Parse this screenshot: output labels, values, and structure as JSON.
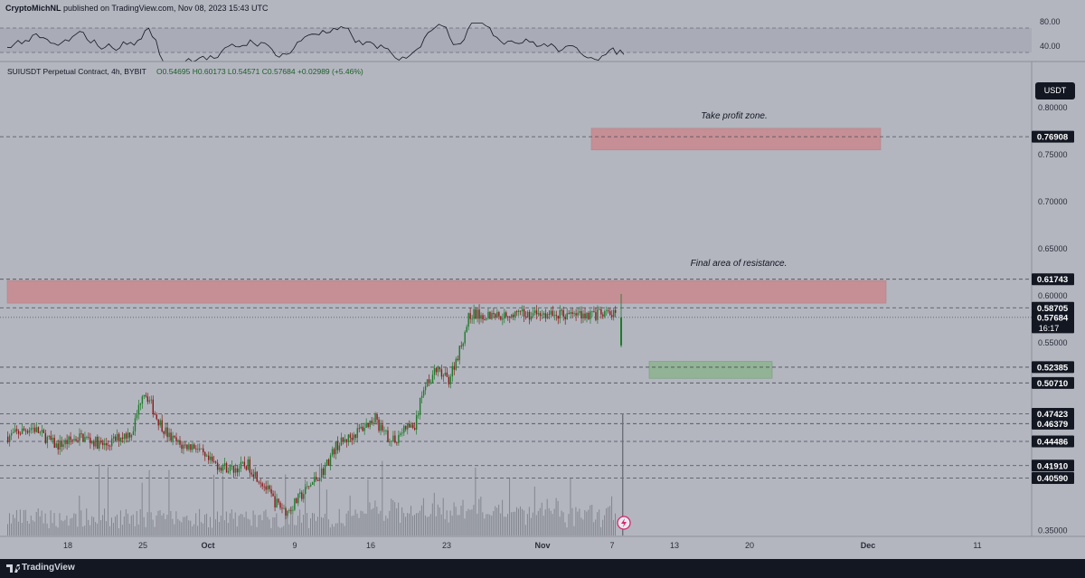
{
  "header": {
    "author": "CryptoMichNL",
    "published_text": "published on TradingView.com, Nov 08, 2023 15:43 UTC"
  },
  "symbol_info": {
    "name": "SUIUSDT Perpetual Contract, 4h, BYBIT",
    "ohlc": "O0.54695  H0.60173  L0.54571  C0.57684  +0.02989 (+5.46%)"
  },
  "currency_button": "USDT",
  "footer": {
    "brand": "TradingView"
  },
  "colors": {
    "background": "#b3b6bf",
    "up": "#1f7a2b",
    "down": "#8b1a1a",
    "zone_red": "#c9898e",
    "zone_green": "#8db38f",
    "label_bg": "#131722"
  },
  "chart_data": {
    "type": "candlestick",
    "timeframe": "4h",
    "y_range": [
      0.35,
      0.82
    ],
    "price_ticks": [
      "0.80000",
      "0.75000",
      "0.70000",
      "0.65000",
      "0.60000",
      "0.55000",
      "0.35000"
    ],
    "x_ticks": [
      "18",
      "25",
      "Oct",
      "9",
      "16",
      "23",
      "Nov",
      "7",
      "13",
      "20",
      "Dec",
      "11"
    ],
    "price_labels": [
      {
        "value": "0.76908"
      },
      {
        "value": "0.61743"
      },
      {
        "value": "0.58705"
      },
      {
        "value": "0.57684",
        "extra": "16:17"
      },
      {
        "value": "0.52385"
      },
      {
        "value": "0.50710"
      },
      {
        "value": "0.47423"
      },
      {
        "value": "0.46379"
      },
      {
        "value": "0.44486"
      },
      {
        "value": "0.41910"
      },
      {
        "value": "0.40590"
      }
    ],
    "annotations": [
      {
        "text": "Take profit zone."
      },
      {
        "text": "Final area of resistance."
      }
    ],
    "zones": [
      {
        "kind": "take-profit",
        "from": 0.755,
        "to": 0.778
      },
      {
        "kind": "resistance",
        "from": 0.592,
        "to": 0.616
      },
      {
        "kind": "support",
        "from": 0.512,
        "to": 0.53
      }
    ],
    "rsi": {
      "ticks": [
        "80.00",
        "40.00"
      ],
      "band": [
        40,
        80
      ]
    },
    "waypoints": [
      [
        0.45,
        0.0
      ],
      [
        0.46,
        0.04
      ],
      [
        0.44,
        0.08
      ],
      [
        0.45,
        0.12
      ],
      [
        0.44,
        0.16
      ],
      [
        0.45,
        0.185
      ],
      [
        0.455,
        0.205
      ],
      [
        0.48,
        0.215
      ],
      [
        0.5,
        0.222
      ],
      [
        0.49,
        0.232
      ],
      [
        0.47,
        0.245
      ],
      [
        0.45,
        0.265
      ],
      [
        0.44,
        0.285
      ],
      [
        0.44,
        0.31
      ],
      [
        0.425,
        0.325
      ],
      [
        0.42,
        0.345
      ],
      [
        0.415,
        0.37
      ],
      [
        0.42,
        0.395
      ],
      [
        0.4,
        0.42
      ],
      [
        0.38,
        0.44
      ],
      [
        0.37,
        0.46
      ],
      [
        0.385,
        0.48
      ],
      [
        0.4,
        0.5
      ],
      [
        0.415,
        0.52
      ],
      [
        0.44,
        0.54
      ],
      [
        0.45,
        0.565
      ],
      [
        0.46,
        0.585
      ],
      [
        0.47,
        0.605
      ],
      [
        0.455,
        0.615
      ],
      [
        0.445,
        0.635
      ],
      [
        0.46,
        0.655
      ],
      [
        0.46,
        0.67
      ],
      [
        0.505,
        0.685
      ],
      [
        0.52,
        0.705
      ],
      [
        0.51,
        0.725
      ],
      [
        0.545,
        0.745
      ],
      [
        0.58,
        0.76
      ]
    ]
  }
}
